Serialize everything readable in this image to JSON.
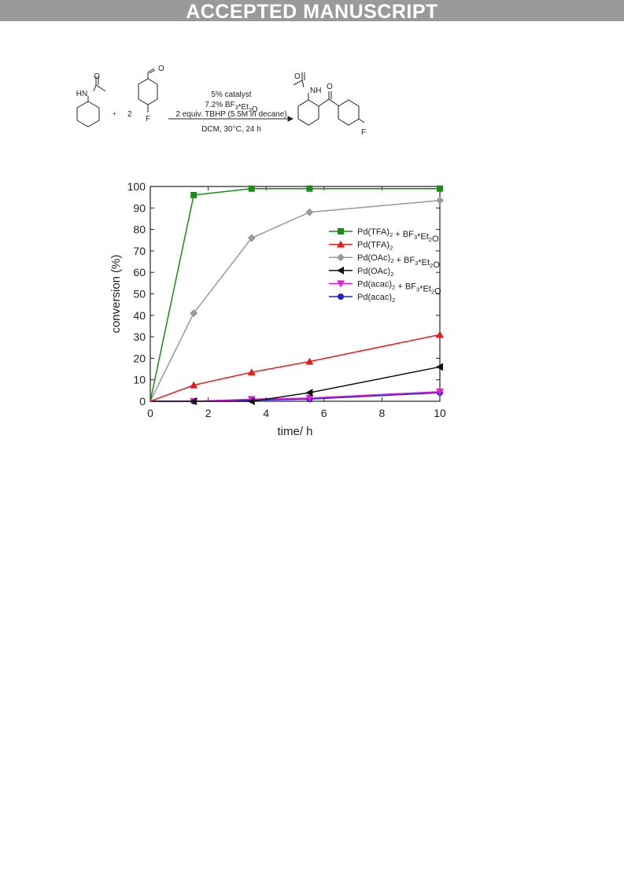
{
  "banner": {
    "text": "ACCEPTED MANUSCRIPT"
  },
  "scheme": {
    "plus": "+",
    "coefficient": "2",
    "reagent_catalyst": "5% catalyst",
    "reagent_lewis_acid": "7.2% BF3*Et2O",
    "reagent_oxidant": "2 equiv. TBHP (5.5M in decane)",
    "conditions": "DCM, 30°C, 24 h",
    "atom_labels": {
      "o": "O",
      "hn": "HN",
      "nh": "NH",
      "f": "F"
    }
  },
  "chart_data": {
    "type": "line",
    "xlabel": "time/ h",
    "ylabel": "conversion (%)",
    "xlim": [
      0,
      10
    ],
    "ylim": [
      0,
      100
    ],
    "xticks": [
      0,
      2,
      4,
      6,
      8,
      10
    ],
    "yticks": [
      0,
      10,
      20,
      30,
      40,
      50,
      60,
      70,
      80,
      90,
      100
    ],
    "grid": false,
    "legend_position": "right",
    "series": [
      {
        "name": "Pd(TFA)2 + BF3*Et2O",
        "color": "#1a8a1a",
        "marker": "square",
        "x": [
          0,
          1.5,
          3.5,
          5.5,
          10
        ],
        "y": [
          0,
          96,
          99,
          99,
          99
        ]
      },
      {
        "name": "Pd(TFA)2",
        "color": "#e02020",
        "marker": "triangle-up",
        "x": [
          0,
          1.5,
          3.5,
          5.5,
          10
        ],
        "y": [
          0,
          7.5,
          13.5,
          18.5,
          31
        ]
      },
      {
        "name": "Pd(OAc)2 + BF3*Et2O",
        "color": "#999999",
        "marker": "diamond",
        "x": [
          0,
          1.5,
          3.5,
          5.5,
          10
        ],
        "y": [
          0,
          41,
          76,
          88,
          93.5
        ]
      },
      {
        "name": "Pd(OAc)2",
        "color": "#111111",
        "marker": "triangle-left",
        "x": [
          0,
          1.5,
          3.5,
          5.5,
          10
        ],
        "y": [
          0,
          0,
          0,
          4,
          16
        ]
      },
      {
        "name": "Pd(acac)2 + BF3*Et2O",
        "color": "#e020e0",
        "marker": "triangle-down",
        "x": [
          0,
          1.5,
          3.5,
          5.5,
          10
        ],
        "y": [
          0,
          0,
          1,
          1.5,
          4.5
        ]
      },
      {
        "name": "Pd(acac)2",
        "color": "#2020d0",
        "marker": "circle",
        "x": [
          0,
          1.5,
          3.5,
          5.5,
          10
        ],
        "y": [
          0,
          0,
          0.5,
          1,
          4
        ]
      }
    ]
  }
}
